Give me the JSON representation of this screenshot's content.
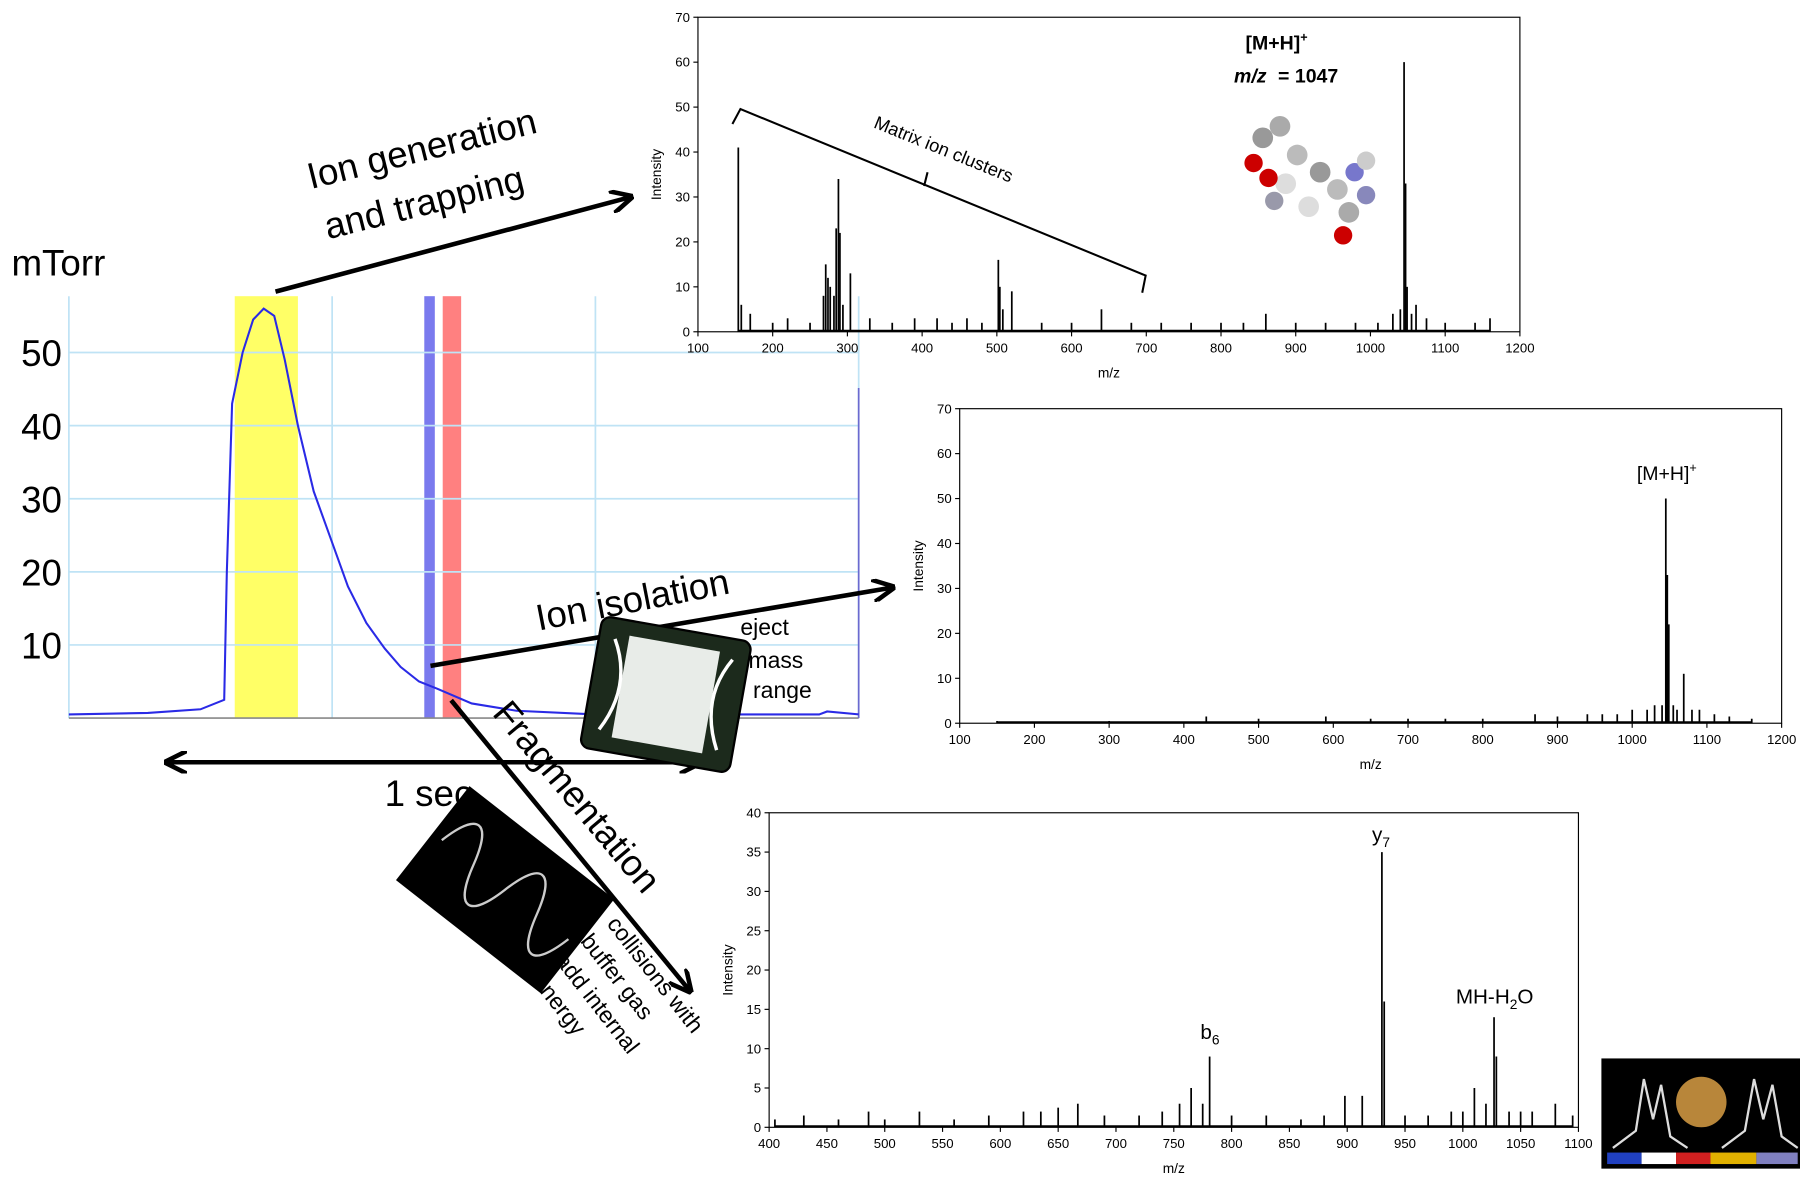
{
  "chart_data": [
    {
      "type": "line",
      "ylabel": "mTorr",
      "color": "#2a2ae6",
      "grid": true,
      "grid_color": "#bfe3f5",
      "x": [
        0,
        3,
        5,
        5.9,
        6.0,
        6.2,
        6.6,
        7.0,
        7.4,
        7.8,
        8.2,
        8.7,
        9.3,
        10.0,
        10.6,
        11.3,
        12.0,
        12.6,
        13.3,
        14.0,
        15.3,
        17,
        20,
        25,
        28.5,
        28.8,
        30
      ],
      "values": [
        0.5,
        0.7,
        1.2,
        2.5,
        20,
        43,
        50,
        54.5,
        56,
        55,
        49,
        40,
        31,
        24,
        18,
        13,
        9.5,
        7,
        5,
        4,
        2,
        1,
        0.5,
        0.5,
        0.5,
        0.9,
        0.5
      ],
      "xlim": [
        0,
        30
      ],
      "xticks": [
        0,
        10,
        20,
        30
      ],
      "ylim": [
        0,
        57.7
      ],
      "yticks": [
        10,
        20,
        30,
        40,
        50
      ],
      "spans": [
        {
          "from": 6.3,
          "to": 8.7,
          "color": "#ffff66"
        },
        {
          "from": 13.5,
          "to": 13.9,
          "color": "#7a7aee"
        },
        {
          "from": 14.2,
          "to": 14.9,
          "color": "#ff8080"
        }
      ]
    },
    {
      "type": "stem",
      "xlabel": "m/z",
      "ylabel": "Intensity",
      "color": "#000000",
      "x": [
        154,
        158,
        170,
        200,
        220,
        250,
        268,
        271,
        274,
        277,
        282,
        285,
        288,
        290,
        294,
        304,
        330,
        360,
        390,
        420,
        440,
        460,
        480,
        502,
        504,
        508,
        520,
        560,
        600,
        640,
        680,
        720,
        760,
        800,
        830,
        860,
        900,
        940,
        980,
        1010,
        1030,
        1040,
        1045,
        1047,
        1049,
        1055,
        1061,
        1075,
        1100,
        1140,
        1160
      ],
      "values": [
        41,
        6,
        4,
        2,
        3,
        2,
        8,
        15,
        12,
        10,
        8,
        23,
        34,
        22,
        6,
        13,
        3,
        2,
        3,
        3,
        2,
        3,
        2,
        16,
        10,
        5,
        9,
        2,
        2,
        5,
        2,
        2,
        2,
        2,
        2,
        4,
        2,
        2,
        2,
        2,
        4,
        5,
        60,
        33,
        10,
        4,
        6,
        3,
        2,
        2,
        3
      ],
      "xlim": [
        100,
        1200
      ],
      "xticks": [
        100,
        200,
        300,
        400,
        500,
        600,
        700,
        800,
        900,
        1000,
        1100,
        1200
      ],
      "ylim": [
        0,
        70
      ],
      "yticks": [
        0,
        10,
        20,
        30,
        40,
        50,
        60,
        70
      ],
      "bracket_label": "Matrix ion clusters",
      "peak_label": {
        "main": "[M+H]",
        "sup": "+"
      },
      "mz_label": {
        "italic": "m/z",
        "rest": "= 1047"
      }
    },
    {
      "type": "stem",
      "xlabel": "m/z",
      "ylabel": "Intensity",
      "color": "#000000",
      "x": [
        150,
        300,
        430,
        500,
        590,
        650,
        700,
        750,
        800,
        870,
        900,
        940,
        960,
        980,
        1000,
        1020,
        1030,
        1040,
        1045,
        1047,
        1049,
        1055,
        1060,
        1069,
        1080,
        1090,
        1110,
        1130,
        1160
      ],
      "values": [
        0.5,
        0.5,
        1.5,
        1,
        1.5,
        1,
        1,
        1,
        1,
        2,
        1.5,
        2,
        2,
        2,
        3,
        3,
        4,
        4,
        50,
        33,
        22,
        4,
        3,
        11,
        3,
        3,
        2,
        1.5,
        1
      ],
      "xlim": [
        100,
        1200
      ],
      "xticks": [
        100,
        200,
        300,
        400,
        500,
        600,
        700,
        800,
        900,
        1000,
        1100,
        1200
      ],
      "ylim": [
        0,
        70
      ],
      "yticks": [
        0,
        10,
        20,
        30,
        40,
        50,
        60,
        70
      ],
      "peak_label": {
        "main": "[M+H]",
        "sup": "+"
      }
    },
    {
      "type": "stem",
      "xlabel": "m/z",
      "ylabel": "Intensity",
      "color": "#000000",
      "x": [
        405,
        430,
        460,
        486,
        500,
        530,
        560,
        590,
        620,
        635,
        650,
        667,
        690,
        720,
        740,
        755,
        765,
        775,
        781,
        800,
        830,
        860,
        880,
        898,
        913,
        930,
        932,
        950,
        970,
        990,
        1000,
        1010,
        1020,
        1027,
        1029,
        1040,
        1050,
        1060,
        1080,
        1095
      ],
      "values": [
        1,
        1.5,
        1,
        2,
        1,
        2,
        1,
        1.5,
        2,
        2,
        2.5,
        3,
        1.5,
        1.5,
        2,
        3,
        5,
        3,
        9,
        1.5,
        1.5,
        1,
        1.5,
        4,
        4,
        35,
        16,
        1.5,
        1.5,
        2,
        2,
        5,
        3,
        14,
        9,
        2,
        2,
        2,
        3,
        1.5
      ],
      "xlim": [
        400,
        1100
      ],
      "xticks": [
        400,
        450,
        500,
        550,
        600,
        650,
        700,
        750,
        800,
        850,
        900,
        950,
        1000,
        1050,
        1100
      ],
      "ylim": [
        0,
        40
      ],
      "yticks": [
        0,
        5,
        10,
        15,
        20,
        25,
        30,
        35,
        40
      ],
      "fragment_labels": [
        {
          "main": "y",
          "sub": "7"
        },
        {
          "main": "b",
          "sub": "6"
        },
        {
          "main": "MH-H",
          "sub": "2",
          "tail": "O"
        }
      ]
    }
  ],
  "annotations": {
    "ion_generation": [
      "Ion generation",
      "and trapping"
    ],
    "ion_isolation": "Ion isolation",
    "fragmentation": "Fragmentation",
    "one_sec": "1 sec",
    "eject": [
      "eject",
      "mass",
      "range"
    ],
    "collisions": [
      "collisions with",
      "buffer gas",
      "add internal",
      "energy"
    ]
  }
}
